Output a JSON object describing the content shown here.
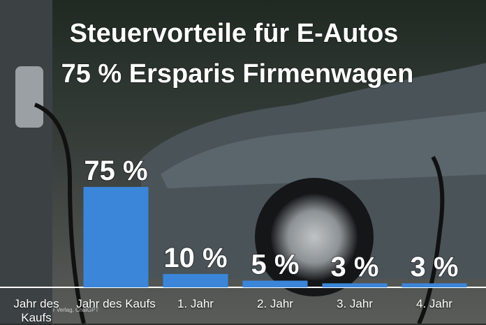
{
  "chart_data": {
    "type": "bar",
    "title": "Steuervorteile für E-Autos",
    "subtitle": "75 % Ersparis Firmenwagen",
    "categories": [
      "Jahr des Kaufs",
      "Jahr des Kaufs",
      "1. Jahr",
      "2. Jahr",
      "3. Jahr",
      "4. Jahr"
    ],
    "values": [
      null,
      75,
      10,
      5,
      3,
      3
    ],
    "value_labels": [
      null,
      "75 %",
      "10 %",
      "5 %",
      "3 %",
      "3 %"
    ],
    "color": "#3b86d8",
    "credit": "r Verlag, ChatGPT"
  }
}
